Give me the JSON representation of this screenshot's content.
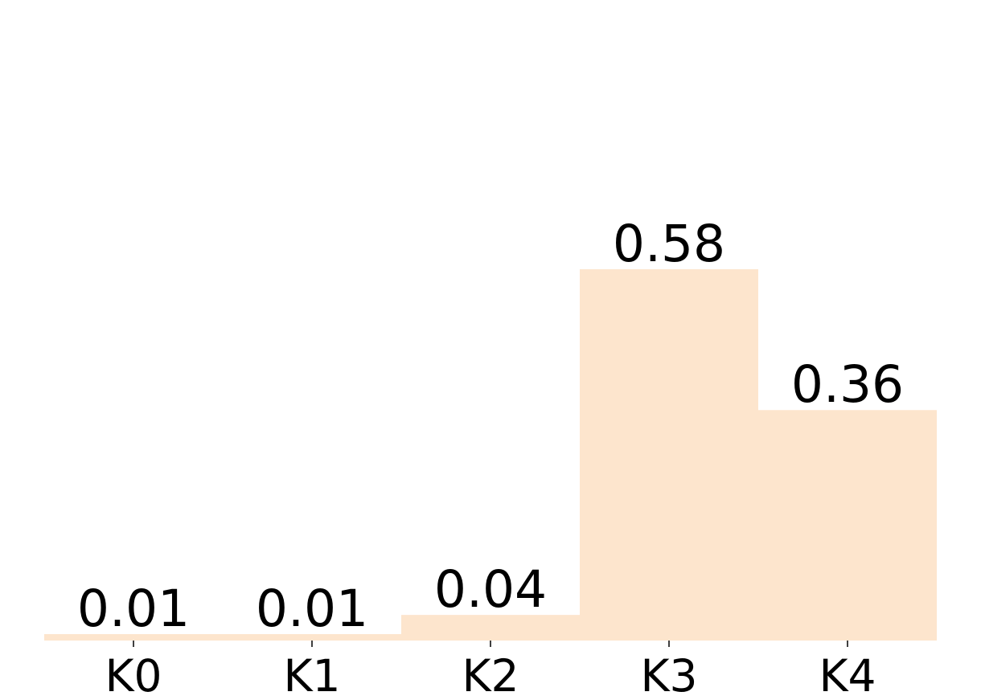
{
  "chart_data": {
    "type": "bar",
    "categories": [
      "K0",
      "K1",
      "K2",
      "K3",
      "K4"
    ],
    "values": [
      0.01,
      0.01,
      0.04,
      0.58,
      0.36
    ],
    "value_labels": [
      "0.01",
      "0.01",
      "0.04",
      "0.58",
      "0.36"
    ],
    "bar_color": "#fde5cd",
    "title": "",
    "xlabel": "",
    "ylabel": "",
    "ylim": [
      0,
      0.58
    ],
    "grid": false,
    "legend": "none",
    "y_axis_visible": false
  }
}
